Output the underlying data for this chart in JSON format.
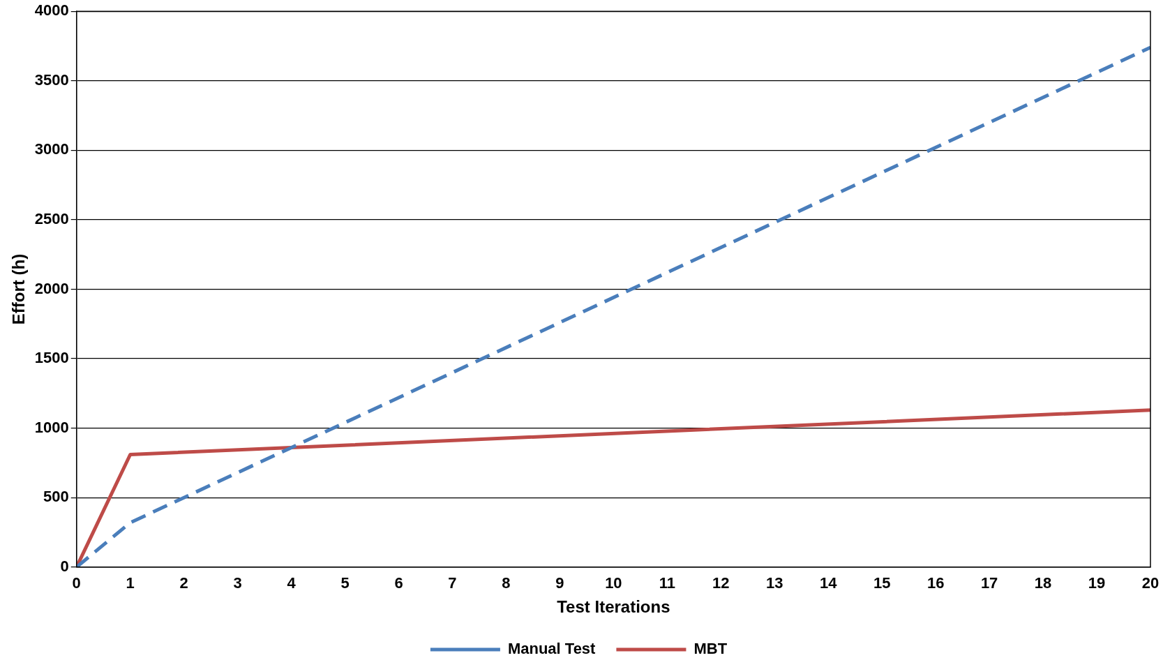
{
  "chart_data": {
    "type": "line",
    "xlabel": "Test Iterations",
    "ylabel": "Effort (h)",
    "x": [
      0,
      1,
      20
    ],
    "series": [
      {
        "name": "Manual Test",
        "color": "#4a7ebb",
        "values": [
          0,
          320,
          3740
        ],
        "line_style": "dashed"
      },
      {
        "name": "MBT",
        "color": "#be4b48",
        "values": [
          0,
          810,
          1130
        ],
        "line_style": "solid"
      }
    ],
    "xlim": [
      0,
      20
    ],
    "xticks": [
      0,
      1,
      2,
      3,
      4,
      5,
      6,
      7,
      8,
      9,
      10,
      11,
      12,
      13,
      14,
      15,
      16,
      17,
      18,
      19,
      20
    ],
    "ylim": [
      0,
      4000
    ],
    "yticks": [
      0,
      500,
      1000,
      1500,
      2000,
      2500,
      3000,
      3500,
      4000
    ],
    "grid": "y",
    "legend": "bottom",
    "marker": "none"
  }
}
